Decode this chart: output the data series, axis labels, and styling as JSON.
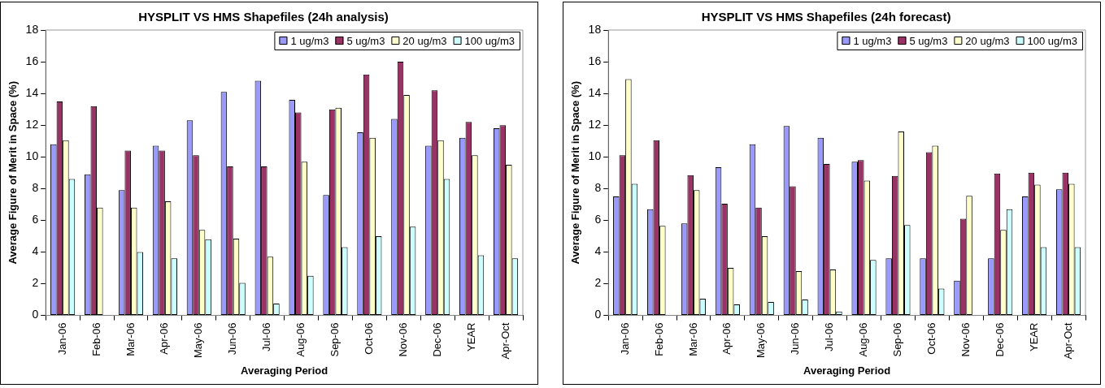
{
  "chart_data": [
    {
      "type": "bar",
      "title": "HYSPLIT VS HMS Shapefiles (24h analysis)",
      "xlabel": "Averaging Period",
      "ylabel": "Average Figure of Merit in Space (%)",
      "categories": [
        "Jan-06",
        "Feb-06",
        "Mar-06",
        "Apr-06",
        "May-06",
        "Jun-06",
        "Jul-06",
        "Aug-06",
        "Sep-06",
        "Oct-06",
        "Nov-06",
        "Dec-06",
        "YEAR",
        "Apr-Oct"
      ],
      "series": [
        {
          "name": "1 ug/m3",
          "color": "#9999ff",
          "values": [
            10.8,
            8.9,
            7.9,
            10.7,
            12.3,
            14.1,
            14.8,
            13.6,
            7.6,
            11.55,
            12.4,
            10.7,
            11.2,
            11.8
          ]
        },
        {
          "name": "5 ug/m3",
          "color": "#993366",
          "values": [
            13.5,
            13.2,
            10.4,
            10.4,
            10.1,
            9.4,
            9.4,
            12.8,
            13.0,
            15.2,
            16.0,
            14.2,
            12.2,
            12.0
          ]
        },
        {
          "name": "20 ug/m3",
          "color": "#ffffcc",
          "values": [
            11.05,
            6.8,
            6.8,
            7.2,
            5.4,
            4.85,
            3.7,
            9.7,
            13.1,
            11.2,
            13.9,
            11.05,
            10.1,
            9.5
          ]
        },
        {
          "name": "100 ug/m3",
          "color": "#ccffff",
          "values": [
            8.6,
            0,
            4.0,
            3.6,
            4.8,
            2.05,
            0.75,
            2.5,
            4.3,
            5.0,
            5.6,
            8.6,
            3.8,
            3.6
          ]
        }
      ],
      "ylim": [
        0,
        18
      ],
      "yticks": [
        0,
        2,
        4,
        6,
        8,
        10,
        12,
        14,
        16,
        18
      ],
      "grid": false,
      "legend": "top right"
    },
    {
      "type": "bar",
      "title": "HYSPLIT VS HMS Shapefiles (24h forecast)",
      "xlabel": "Averaging Period",
      "ylabel": "Average Figure of Merit in Space (%)",
      "categories": [
        "Jan-06",
        "Feb-06",
        "Mar-06",
        "Apr-06",
        "May-06",
        "Jun-06",
        "Jul-06",
        "Aug-06",
        "Sep-06",
        "Oct-06",
        "Nov-06",
        "Dec-06",
        "YEAR",
        "Apr-Oct"
      ],
      "series": [
        {
          "name": "1 ug/m3",
          "color": "#9999ff",
          "values": [
            7.5,
            6.7,
            5.8,
            9.35,
            10.8,
            11.95,
            11.2,
            9.7,
            3.6,
            3.6,
            2.2,
            3.6,
            7.5,
            7.95
          ]
        },
        {
          "name": "5 ug/m3",
          "color": "#993366",
          "values": [
            10.1,
            11.05,
            8.85,
            7.05,
            6.8,
            8.15,
            9.55,
            9.8,
            8.8,
            10.3,
            6.1,
            8.95,
            9.0,
            9.0
          ]
        },
        {
          "name": "20 ug/m3",
          "color": "#ffffcc",
          "values": [
            14.9,
            5.65,
            7.9,
            3.0,
            5.0,
            2.8,
            2.9,
            8.5,
            11.6,
            10.7,
            7.55,
            5.4,
            8.25,
            8.3
          ]
        },
        {
          "name": "100 ug/m3",
          "color": "#ccffff",
          "values": [
            8.3,
            0,
            1.05,
            0.7,
            0.85,
            1.0,
            0.25,
            3.5,
            5.7,
            1.7,
            0,
            6.7,
            4.3,
            4.3
          ]
        }
      ],
      "ylim": [
        0,
        18
      ],
      "yticks": [
        0,
        2,
        4,
        6,
        8,
        10,
        12,
        14,
        16,
        18
      ],
      "grid": false,
      "legend": "top right"
    }
  ]
}
